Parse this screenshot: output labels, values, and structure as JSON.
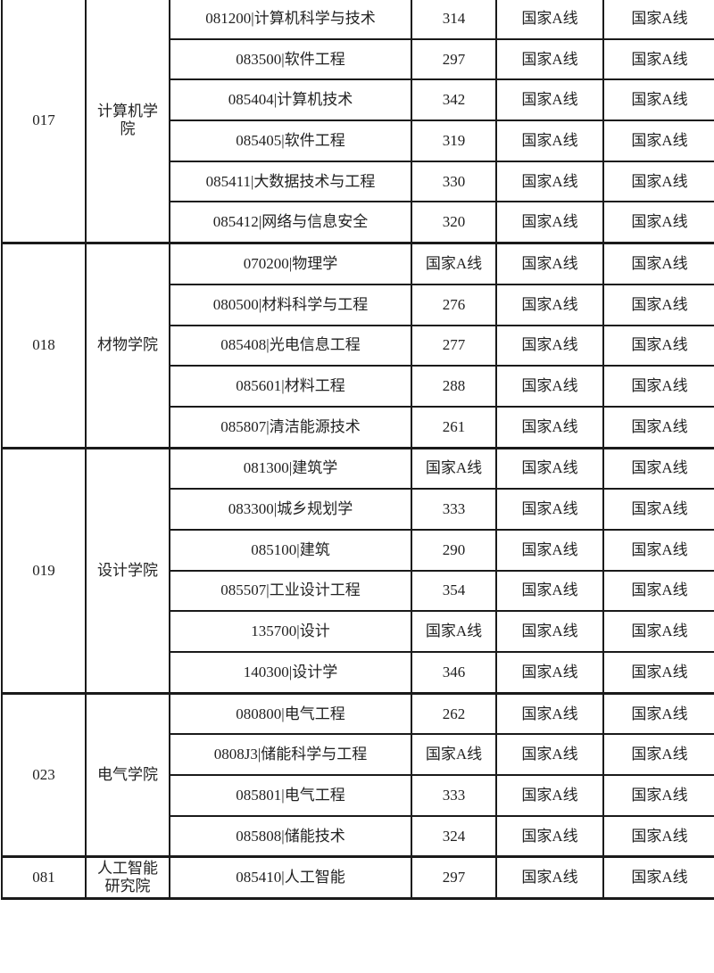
{
  "table": {
    "groups": [
      {
        "code": "017",
        "college": "计算机学院",
        "college_lines": [
          "计算机学",
          "院"
        ],
        "rows": [
          {
            "major": "081200|计算机科学与技术",
            "score": "314",
            "c1": "国家A线",
            "c2": "国家A线"
          },
          {
            "major": "083500|软件工程",
            "score": "297",
            "c1": "国家A线",
            "c2": "国家A线"
          },
          {
            "major": "085404|计算机技术",
            "score": "342",
            "c1": "国家A线",
            "c2": "国家A线"
          },
          {
            "major": "085405|软件工程",
            "score": "319",
            "c1": "国家A线",
            "c2": "国家A线"
          },
          {
            "major": "085411|大数据技术与工程",
            "score": "330",
            "c1": "国家A线",
            "c2": "国家A线"
          },
          {
            "major": "085412|网络与信息安全",
            "score": "320",
            "c1": "国家A线",
            "c2": "国家A线"
          }
        ]
      },
      {
        "code": "018",
        "college": "材物学院",
        "college_lines": [
          "材物学院"
        ],
        "rows": [
          {
            "major": "070200|物理学",
            "score": "国家A线",
            "c1": "国家A线",
            "c2": "国家A线"
          },
          {
            "major": "080500|材料科学与工程",
            "score": "276",
            "c1": "国家A线",
            "c2": "国家A线"
          },
          {
            "major": "085408|光电信息工程",
            "score": "277",
            "c1": "国家A线",
            "c2": "国家A线"
          },
          {
            "major": "085601|材料工程",
            "score": "288",
            "c1": "国家A线",
            "c2": "国家A线"
          },
          {
            "major": "085807|清洁能源技术",
            "score": "261",
            "c1": "国家A线",
            "c2": "国家A线"
          }
        ]
      },
      {
        "code": "019",
        "college": "设计学院",
        "college_lines": [
          "设计学院"
        ],
        "rows": [
          {
            "major": "081300|建筑学",
            "score": "国家A线",
            "c1": "国家A线",
            "c2": "国家A线"
          },
          {
            "major": "083300|城乡规划学",
            "score": "333",
            "c1": "国家A线",
            "c2": "国家A线"
          },
          {
            "major": "085100|建筑",
            "score": "290",
            "c1": "国家A线",
            "c2": "国家A线"
          },
          {
            "major": "085507|工业设计工程",
            "score": "354",
            "c1": "国家A线",
            "c2": "国家A线"
          },
          {
            "major": "135700|设计",
            "score": "国家A线",
            "c1": "国家A线",
            "c2": "国家A线"
          },
          {
            "major": "140300|设计学",
            "score": "346",
            "c1": "国家A线",
            "c2": "国家A线"
          }
        ]
      },
      {
        "code": "023",
        "college": "电气学院",
        "college_lines": [
          "电气学院"
        ],
        "rows": [
          {
            "major": "080800|电气工程",
            "score": "262",
            "c1": "国家A线",
            "c2": "国家A线"
          },
          {
            "major": "0808J3|储能科学与工程",
            "score": "国家A线",
            "c1": "国家A线",
            "c2": "国家A线"
          },
          {
            "major": "085801|电气工程",
            "score": "333",
            "c1": "国家A线",
            "c2": "国家A线"
          },
          {
            "major": "085808|储能技术",
            "score": "324",
            "c1": "国家A线",
            "c2": "国家A线"
          }
        ]
      },
      {
        "code": "081",
        "college": "人工智能研究院",
        "college_lines": [
          "人工智能",
          "研究院"
        ],
        "rows": [
          {
            "major": "085410|人工智能",
            "score": "297",
            "c1": "国家A线",
            "c2": "国家A线"
          }
        ]
      }
    ]
  }
}
